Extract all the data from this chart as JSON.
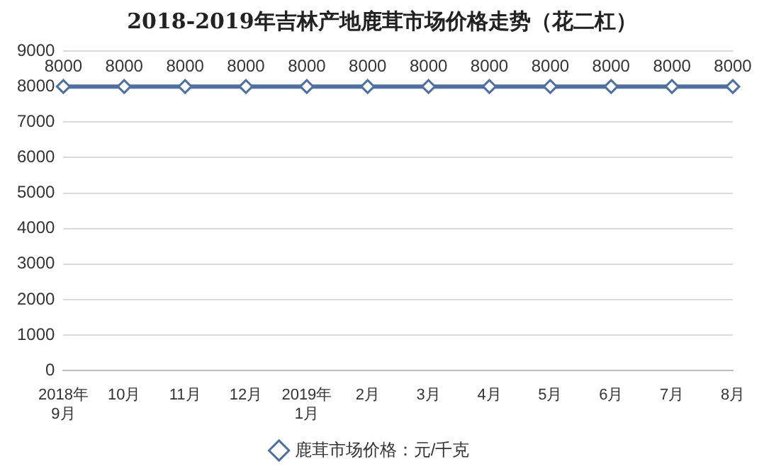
{
  "chart_data": {
    "type": "line",
    "title": "2018-2019年吉林产地鹿茸市场价格走势（花二杠）",
    "categories": [
      "2018年\n9月",
      "10月",
      "11月",
      "12月",
      "2019年\n1月",
      "2月",
      "3月",
      "4月",
      "5月",
      "6月",
      "7月",
      "8月"
    ],
    "series": [
      {
        "name": "鹿茸市场价格：元/千克",
        "color": "#4f6fa0",
        "values": [
          8000,
          8000,
          8000,
          8000,
          8000,
          8000,
          8000,
          8000,
          8000,
          8000,
          8000,
          8000
        ]
      }
    ],
    "ylim": [
      0,
      9000
    ],
    "yticks": [
      0,
      1000,
      2000,
      3000,
      4000,
      5000,
      6000,
      7000,
      8000,
      9000
    ],
    "grid": "y",
    "legend": "bottom",
    "marker": "diamond",
    "line_style": "solid",
    "data_labels": true
  }
}
